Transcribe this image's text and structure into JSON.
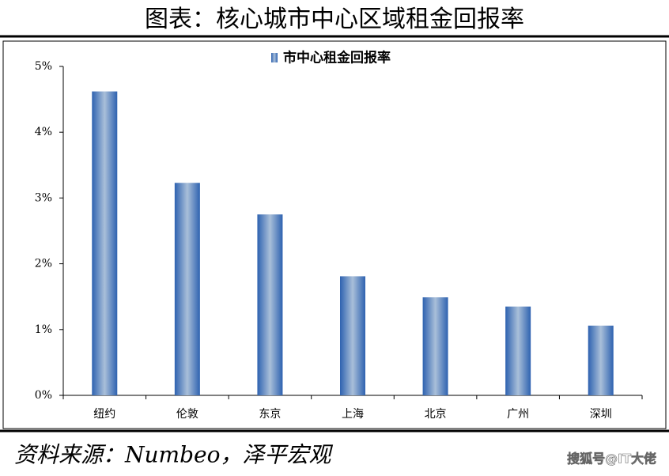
{
  "chart_data": {
    "type": "bar",
    "title": "图表：核心城市中心区域租金回报率",
    "categories": [
      "纽约",
      "伦敦",
      "东京",
      "上海",
      "北京",
      "广州",
      "深圳"
    ],
    "series": [
      {
        "name": "市中心租金回报率",
        "color": "#2e62b0",
        "values": [
          4.62,
          3.23,
          2.75,
          1.81,
          1.49,
          1.35,
          1.06
        ]
      }
    ],
    "ylim": [
      0,
      5
    ],
    "yticks": [
      {
        "value": 0,
        "label": "0%"
      },
      {
        "value": 1,
        "label": "1%"
      },
      {
        "value": 2,
        "label": "2%"
      },
      {
        "value": 3,
        "label": "3%"
      },
      {
        "value": 4,
        "label": "4%"
      },
      {
        "value": 5,
        "label": "5%"
      }
    ],
    "grid": false,
    "legend": "top",
    "source": "资料来源：Numbeo，泽平宏观",
    "watermark": "搜狐号@IT大佬"
  }
}
